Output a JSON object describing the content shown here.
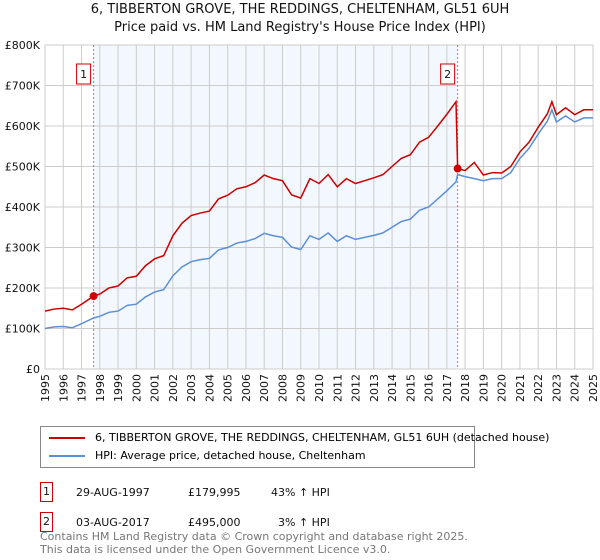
{
  "chart_data": {
    "type": "line",
    "title": "6, TIBBERTON GROVE, THE REDDINGS, CHELTENHAM, GL51 6UH",
    "subtitle": "Price paid vs. HM Land Registry's House Price Index (HPI)",
    "xlim": [
      1995,
      2025
    ],
    "ylim": [
      0,
      800000
    ],
    "y_ticks": [
      0,
      100000,
      200000,
      300000,
      400000,
      500000,
      600000,
      700000,
      800000
    ],
    "y_tick_labels": [
      "£0",
      "£100K",
      "£200K",
      "£300K",
      "£400K",
      "£500K",
      "£600K",
      "£700K",
      "£800K"
    ],
    "x_ticks": [
      "1995",
      "1996",
      "1997",
      "1998",
      "1999",
      "2000",
      "2001",
      "2002",
      "2003",
      "2004",
      "2005",
      "2006",
      "2007",
      "2008",
      "2009",
      "2010",
      "2011",
      "2012",
      "2013",
      "2014",
      "2015",
      "2016",
      "2017",
      "2018",
      "2019",
      "2020",
      "2021",
      "2022",
      "2023",
      "2024",
      "2025"
    ],
    "grid": true,
    "shaded_range": [
      1997.66,
      2017.59
    ],
    "series": [
      {
        "name": "6, TIBBERTON GROVE, THE REDDINGS, CHELTENHAM, GL51 6UH (detached house)",
        "color": "#cc0000",
        "x": [
          1995,
          1995.5,
          1996,
          1996.5,
          1997,
          1997.66,
          1998,
          1998.5,
          1999,
          1999.5,
          2000,
          2000.5,
          2001,
          2001.5,
          2002,
          2002.5,
          2003,
          2003.5,
          2004,
          2004.5,
          2005,
          2005.5,
          2006,
          2006.5,
          2007,
          2007.5,
          2008,
          2008.5,
          2009,
          2009.5,
          2010,
          2010.5,
          2011,
          2011.5,
          2012,
          2012.5,
          2013,
          2013.5,
          2014,
          2014.5,
          2015,
          2015.5,
          2016,
          2016.5,
          2017,
          2017.5,
          2017.59,
          2018,
          2018.5,
          2019,
          2019.5,
          2020,
          2020.5,
          2021,
          2021.5,
          2022,
          2022.5,
          2022.75,
          2023,
          2023.5,
          2024,
          2024.5,
          2025
        ],
        "y": [
          143000,
          148000,
          150000,
          146000,
          160000,
          179995,
          185000,
          200000,
          205000,
          225000,
          229000,
          255000,
          272000,
          280000,
          329000,
          360000,
          379000,
          385000,
          390000,
          420000,
          429000,
          445000,
          450000,
          460000,
          479000,
          470000,
          465000,
          430000,
          422000,
          470000,
          458000,
          480000,
          450000,
          470000,
          458000,
          465000,
          472000,
          480000,
          500000,
          520000,
          529000,
          560000,
          572000,
          600000,
          629000,
          660000,
          495000,
          490000,
          510000,
          479000,
          485000,
          484000,
          500000,
          536000,
          560000,
          597000,
          630000,
          660000,
          628000,
          645000,
          628000,
          640000,
          640000
        ]
      },
      {
        "name": "HPI: Average price, detached house, Cheltenham",
        "color": "#5b8fd6",
        "x": [
          1995,
          1995.5,
          1996,
          1996.5,
          1997,
          1997.66,
          1998,
          1998.5,
          1999,
          1999.5,
          2000,
          2000.5,
          2001,
          2001.5,
          2002,
          2002.5,
          2003,
          2003.5,
          2004,
          2004.5,
          2005,
          2005.5,
          2006,
          2006.5,
          2007,
          2007.5,
          2008,
          2008.5,
          2009,
          2009.5,
          2010,
          2010.5,
          2011,
          2011.5,
          2012,
          2012.5,
          2013,
          2013.5,
          2014,
          2014.5,
          2015,
          2015.5,
          2016,
          2016.5,
          2017,
          2017.5,
          2017.59,
          2018,
          2018.5,
          2019,
          2019.5,
          2020,
          2020.5,
          2021,
          2021.5,
          2022,
          2022.5,
          2022.75,
          2023,
          2023.5,
          2024,
          2024.5,
          2025
        ],
        "y": [
          100000,
          104000,
          105000,
          102000,
          112000,
          126000,
          130000,
          140000,
          143000,
          157000,
          160000,
          178000,
          190000,
          196000,
          230000,
          252000,
          265000,
          270000,
          273000,
          294000,
          300000,
          311000,
          315000,
          322000,
          335000,
          329000,
          325000,
          301000,
          295000,
          329000,
          320000,
          336000,
          315000,
          329000,
          320000,
          325000,
          330000,
          336000,
          350000,
          364000,
          370000,
          392000,
          400000,
          420000,
          440000,
          462000,
          480000,
          475000,
          470000,
          465000,
          470000,
          470000,
          485000,
          520000,
          545000,
          580000,
          612000,
          640000,
          610000,
          625000,
          610000,
          620000,
          620000
        ]
      }
    ],
    "annotations": [
      {
        "label": "1",
        "x": 1997.66,
        "y": 179995
      },
      {
        "label": "2",
        "x": 2017.59,
        "y": 495000
      }
    ]
  },
  "legend": {
    "red": "6, TIBBERTON GROVE, THE REDDINGS, CHELTENHAM, GL51 6UH (detached house)",
    "blue": "HPI: Average price, detached house, Cheltenham"
  },
  "transactions": [
    {
      "num": "1",
      "date": "29-AUG-1997",
      "price": "£179,995",
      "hpi": "43% ↑ HPI"
    },
    {
      "num": "2",
      "date": "03-AUG-2017",
      "price": "£495,000",
      "hpi": "3% ↑ HPI"
    }
  ],
  "footer": {
    "line1": "Contains HM Land Registry data © Crown copyright and database right 2025.",
    "line2": "This data is licensed under the Open Government Licence v3.0."
  }
}
